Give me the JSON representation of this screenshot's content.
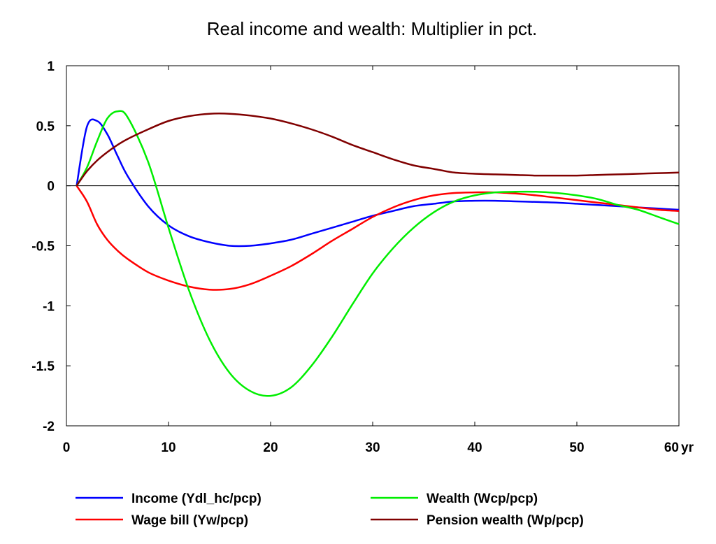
{
  "chart_data": {
    "type": "line",
    "title": "Real income and wealth: Multiplier in pct.",
    "xlabel": "",
    "ylabel": "",
    "x_unit_label": "yr",
    "xlim": [
      0,
      60
    ],
    "ylim": [
      -2,
      1
    ],
    "x_ticks": [
      "0",
      "10",
      "20",
      "30",
      "40",
      "50",
      "60"
    ],
    "y_ticks": [
      "1",
      "0.5",
      "0",
      "-0.5",
      "-1",
      "-1.5",
      "-2"
    ],
    "zero_line": true,
    "grid": false,
    "legend_position": "bottom",
    "x": [
      1,
      2,
      3,
      4,
      5,
      6,
      8,
      10,
      12,
      14,
      16,
      18,
      20,
      22,
      24,
      26,
      28,
      30,
      32,
      34,
      36,
      38,
      40,
      42,
      44,
      46,
      48,
      50,
      52,
      54,
      56,
      58,
      60
    ],
    "series": [
      {
        "name": "Income (Ydl_hc/pcp)",
        "color": "#0000ff",
        "values": [
          0,
          0.49,
          0.54,
          0.43,
          0.25,
          0.08,
          -0.17,
          -0.33,
          -0.42,
          -0.47,
          -0.5,
          -0.5,
          -0.48,
          -0.45,
          -0.4,
          -0.35,
          -0.3,
          -0.25,
          -0.21,
          -0.17,
          -0.15,
          -0.13,
          -0.125,
          -0.125,
          -0.13,
          -0.135,
          -0.14,
          -0.15,
          -0.16,
          -0.17,
          -0.18,
          -0.19,
          -0.2
        ]
      },
      {
        "name": "Wage bill (Yw/pcp)",
        "color": "#ff0000",
        "values": [
          0,
          -0.13,
          -0.32,
          -0.45,
          -0.54,
          -0.61,
          -0.72,
          -0.79,
          -0.84,
          -0.865,
          -0.86,
          -0.82,
          -0.75,
          -0.67,
          -0.57,
          -0.46,
          -0.36,
          -0.26,
          -0.18,
          -0.12,
          -0.08,
          -0.06,
          -0.055,
          -0.055,
          -0.065,
          -0.08,
          -0.1,
          -0.12,
          -0.14,
          -0.16,
          -0.18,
          -0.2,
          -0.21
        ]
      },
      {
        "name": "Wealth (Wcp/pcp)",
        "color": "#00ee00",
        "values": [
          0,
          0.15,
          0.37,
          0.56,
          0.62,
          0.57,
          0.2,
          -0.35,
          -0.87,
          -1.28,
          -1.56,
          -1.71,
          -1.75,
          -1.68,
          -1.5,
          -1.26,
          -0.99,
          -0.73,
          -0.52,
          -0.35,
          -0.22,
          -0.13,
          -0.08,
          -0.055,
          -0.05,
          -0.05,
          -0.06,
          -0.08,
          -0.11,
          -0.16,
          -0.2,
          -0.26,
          -0.32
        ]
      },
      {
        "name": "Pension wealth (Wp/pcp)",
        "color": "#800000",
        "values": [
          0,
          0.12,
          0.21,
          0.28,
          0.34,
          0.39,
          0.47,
          0.54,
          0.58,
          0.6,
          0.6,
          0.585,
          0.56,
          0.52,
          0.47,
          0.41,
          0.34,
          0.28,
          0.22,
          0.17,
          0.14,
          0.11,
          0.1,
          0.095,
          0.09,
          0.085,
          0.085,
          0.085,
          0.09,
          0.095,
          0.1,
          0.105,
          0.11
        ]
      }
    ]
  }
}
